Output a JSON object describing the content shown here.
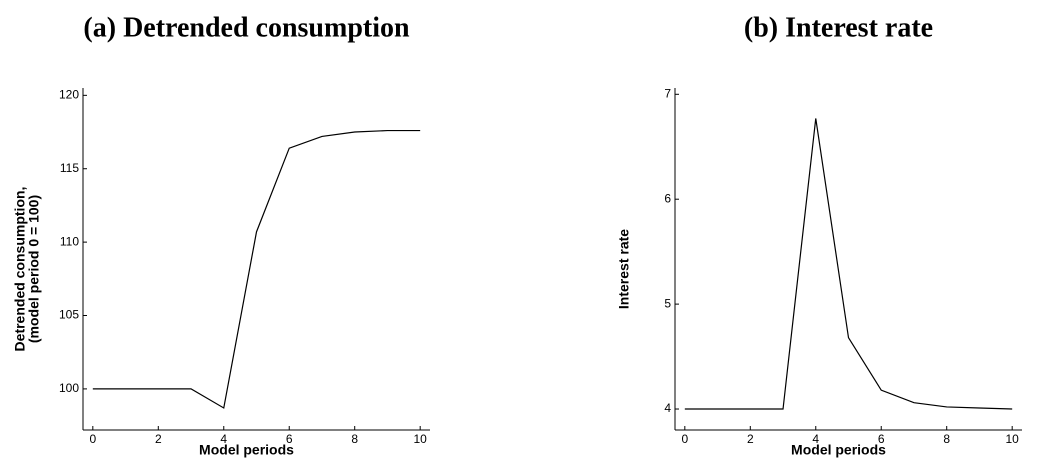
{
  "chart_data": [
    {
      "type": "line",
      "title": "(a) Detrended consumption",
      "xlabel": "Model periods",
      "ylabel": [
        "Detrended consumption,",
        "(model period 0 = 100)"
      ],
      "x": [
        0,
        1,
        2,
        3,
        4,
        5,
        6,
        7,
        8,
        9,
        10
      ],
      "series": [
        {
          "color": "#000000",
          "values": [
            100,
            100,
            100,
            100,
            98.7,
            110.7,
            116.4,
            117.2,
            117.5,
            117.6,
            117.6
          ]
        }
      ],
      "xlim": [
        -0.3,
        10.3
      ],
      "xticks": [
        0,
        2,
        4,
        6,
        8,
        10
      ],
      "ylim": [
        97.2,
        120.5
      ],
      "yticks": [
        100,
        105,
        110,
        115,
        120
      ]
    },
    {
      "type": "line",
      "title": "(b) Interest rate",
      "xlabel": "Model periods",
      "ylabel": [
        "Interest rate"
      ],
      "x": [
        0,
        1,
        2,
        3,
        4,
        5,
        6,
        7,
        8,
        9,
        10
      ],
      "series": [
        {
          "color": "#000000",
          "values": [
            4.0,
            4.0,
            4.0,
            4.0,
            6.77,
            4.68,
            4.18,
            4.06,
            4.02,
            4.01,
            4.0
          ]
        }
      ],
      "xlim": [
        -0.3,
        10.3
      ],
      "xticks": [
        0,
        2,
        4,
        6,
        8,
        10
      ],
      "ylim": [
        3.8,
        7.06
      ],
      "yticks": [
        4,
        5,
        6,
        7
      ]
    }
  ]
}
